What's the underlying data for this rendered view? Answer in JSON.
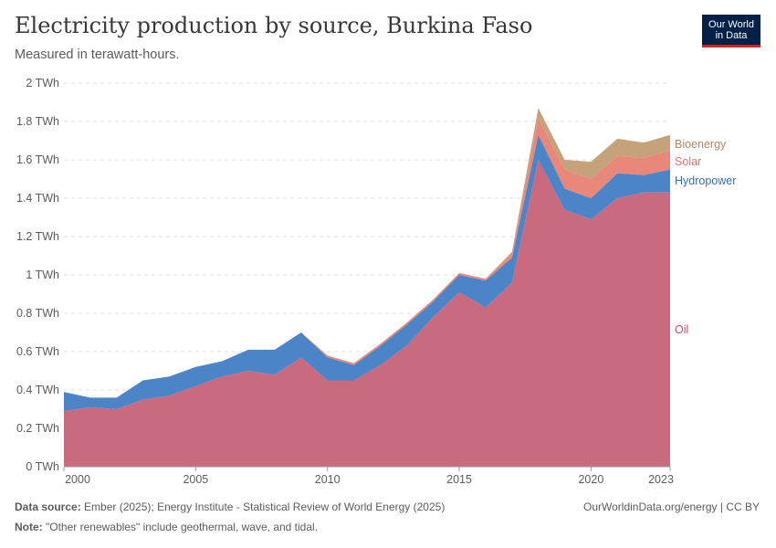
{
  "header": {
    "title": "Electricity production by source, Burkina Faso",
    "subtitle": "Measured in terawatt-hours.",
    "logo_line1": "Our World",
    "logo_line2": "in Data"
  },
  "footer": {
    "source_label": "Data source:",
    "source_text": " Ember (2025); Energy Institute - Statistical Review of World Energy (2025)",
    "note_label": "Note:",
    "note_text": " \"Other renewables\" include geothermal, wave, and tidal.",
    "credit": "OurWorldinData.org/energy | CC BY"
  },
  "chart_data": {
    "type": "area",
    "stacked": true,
    "unit": "TWh",
    "x": [
      2000,
      2001,
      2002,
      2003,
      2004,
      2005,
      2006,
      2007,
      2008,
      2009,
      2010,
      2011,
      2012,
      2013,
      2014,
      2015,
      2016,
      2017,
      2018,
      2019,
      2020,
      2021,
      2022,
      2023
    ],
    "x_ticks": [
      2000,
      2005,
      2010,
      2015,
      2020,
      2023
    ],
    "y_ticks": [
      0,
      0.2,
      0.4,
      0.6,
      0.8,
      1,
      1.2,
      1.4,
      1.6,
      1.8,
      2
    ],
    "y_tick_labels": [
      "0 TWh",
      "0.2 TWh",
      "0.4 TWh",
      "0.6 TWh",
      "0.8 TWh",
      "1 TWh",
      "1.2 TWh",
      "1.4 TWh",
      "1.6 TWh",
      "1.8 TWh",
      "2 TWh"
    ],
    "ylim": [
      0,
      2
    ],
    "grid": true,
    "series": [
      {
        "name": "Oil",
        "color": "#ca6a7f",
        "values": [
          0.29,
          0.31,
          0.3,
          0.35,
          0.37,
          0.42,
          0.47,
          0.5,
          0.48,
          0.57,
          0.45,
          0.45,
          0.53,
          0.63,
          0.78,
          0.91,
          0.83,
          0.96,
          1.6,
          1.34,
          1.29,
          1.4,
          1.43,
          1.43
        ]
      },
      {
        "name": "Hydropower",
        "color": "#4b84c7",
        "values": [
          0.1,
          0.05,
          0.06,
          0.1,
          0.1,
          0.1,
          0.08,
          0.11,
          0.13,
          0.13,
          0.12,
          0.08,
          0.1,
          0.11,
          0.08,
          0.09,
          0.14,
          0.13,
          0.13,
          0.11,
          0.11,
          0.13,
          0.09,
          0.12
        ]
      },
      {
        "name": "Solar",
        "color": "#e8877a",
        "values": [
          0,
          0,
          0,
          0,
          0,
          0,
          0,
          0,
          0,
          0,
          0.01,
          0.01,
          0.01,
          0.01,
          0.01,
          0.01,
          0.01,
          0.02,
          0.09,
          0.1,
          0.1,
          0.09,
          0.09,
          0.1
        ]
      },
      {
        "name": "Bioenergy",
        "color": "#c4a27a",
        "values": [
          0,
          0,
          0,
          0,
          0,
          0,
          0,
          0,
          0,
          0,
          0,
          0,
          0,
          0,
          0,
          0,
          0,
          0.01,
          0.05,
          0.05,
          0.09,
          0.09,
          0.08,
          0.08
        ]
      }
    ],
    "legend_placement": "right-inline"
  }
}
